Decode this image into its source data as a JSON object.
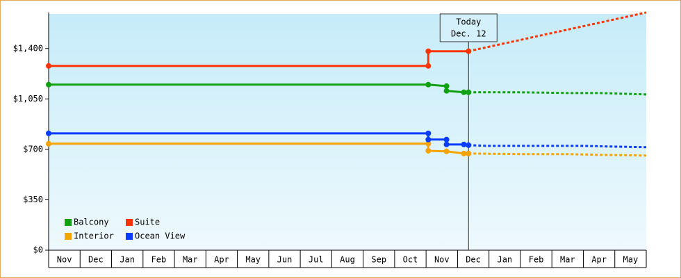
{
  "chart_data": {
    "type": "step-line",
    "categories": [
      "Nov",
      "Dec",
      "Jan",
      "Feb",
      "Mar",
      "Apr",
      "May",
      "Jun",
      "Jul",
      "Aug",
      "Sep",
      "Oct",
      "Nov",
      "Dec",
      "Jan",
      "Feb",
      "Mar",
      "Apr",
      "May"
    ],
    "xlim": [
      0,
      19
    ],
    "ylim": [
      0,
      1640
    ],
    "yticks": [
      {
        "value": 0,
        "label": "$0"
      },
      {
        "value": 350,
        "label": "$350"
      },
      {
        "value": 700,
        "label": "$700"
      },
      {
        "value": 1050,
        "label": "$1,050"
      },
      {
        "value": 1400,
        "label": "$1,400"
      }
    ],
    "annotation": {
      "lines": [
        "Today",
        "Dec. 12"
      ],
      "x": 13.35
    },
    "legend": "lower left",
    "series": [
      {
        "name": "Balcony",
        "color": "#11a011",
        "x": [
          0,
          12.07,
          12.65,
          12.65,
          13.2,
          13.35
        ],
        "values": [
          1149,
          1149,
          1139,
          1106,
          1096,
          1096
        ],
        "forecast": {
          "x": [
            13.35,
            15,
            16.5,
            17.5,
            19
          ],
          "values": [
            1096,
            1096,
            1091,
            1091,
            1081
          ]
        }
      },
      {
        "name": "Suite",
        "color": "#ff3300",
        "x": [
          0,
          12.07,
          12.07,
          13.35
        ],
        "values": [
          1279,
          1279,
          1381,
          1381
        ],
        "forecast": {
          "x": [
            13.35,
            19
          ],
          "values": [
            1381,
            1650
          ]
        }
      },
      {
        "name": "Interior",
        "color": "#f5a300",
        "x": [
          0,
          12.07,
          12.07,
          12.65,
          13.2,
          13.35
        ],
        "values": [
          739,
          739,
          690,
          686,
          671,
          671
        ],
        "forecast": {
          "x": [
            13.35,
            15,
            16.5,
            17.5,
            19
          ],
          "values": [
            671,
            667,
            667,
            662,
            657
          ]
        }
      },
      {
        "name": "Ocean View",
        "color": "#0a3cff",
        "x": [
          0,
          12.07,
          12.07,
          12.65,
          12.65,
          13.2,
          13.35
        ],
        "values": [
          811,
          811,
          768,
          768,
          734,
          734,
          729
        ],
        "forecast": {
          "x": [
            13.35,
            14,
            17,
            18,
            19
          ],
          "values": [
            729,
            724,
            724,
            719,
            715
          ]
        }
      }
    ]
  }
}
